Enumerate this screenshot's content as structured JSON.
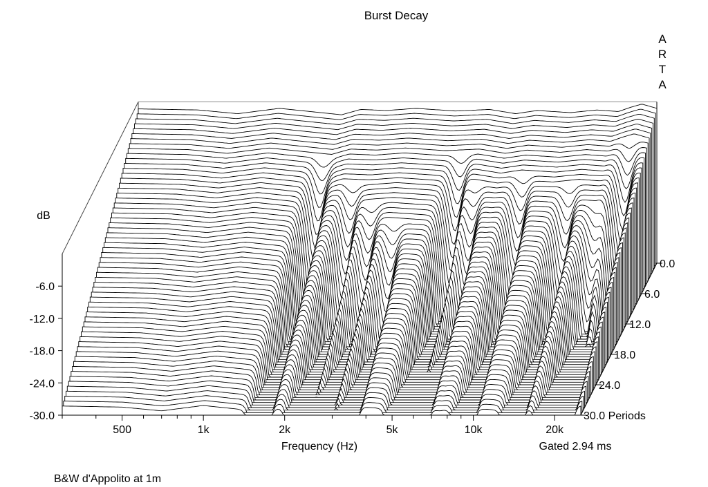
{
  "chart_data": {
    "type": "waterfall",
    "title": "Burst Decay",
    "brand": [
      "A",
      "R",
      "T",
      "A"
    ],
    "xlabel": "Frequency (Hz)",
    "x_scale": "log",
    "xlim": [
      300,
      25000
    ],
    "x_ticks": [
      {
        "value": 500,
        "label": "500"
      },
      {
        "value": 1000,
        "label": "1k"
      },
      {
        "value": 2000,
        "label": "2k"
      },
      {
        "value": 5000,
        "label": "5k"
      },
      {
        "value": 10000,
        "label": "10k"
      },
      {
        "value": 20000,
        "label": "20k"
      }
    ],
    "ylabel": "dB",
    "ylim": [
      -30,
      0
    ],
    "y_ticks": [
      "-6.0",
      "-12.0",
      "-18.0",
      "-24.0",
      "-30.0"
    ],
    "zlabel": "Periods",
    "zlim": [
      0,
      30
    ],
    "z_ticks": [
      "0.0",
      "6.0",
      "12.0",
      "18.0",
      "24.0",
      "30.0 Periods"
    ],
    "subtitle_right": "Gated 2.94 ms",
    "footnote": "B&W d'Appolito at 1m",
    "response_0_periods_db": [
      {
        "f": 300,
        "db": -1.3
      },
      {
        "f": 500,
        "db": -1.5
      },
      {
        "f": 700,
        "db": -2.2
      },
      {
        "f": 1000,
        "db": -1.2
      },
      {
        "f": 1300,
        "db": -1.8
      },
      {
        "f": 1700,
        "db": -2.4
      },
      {
        "f": 2000,
        "db": -1.4
      },
      {
        "f": 2500,
        "db": -1.6
      },
      {
        "f": 3200,
        "db": -1.2
      },
      {
        "f": 4500,
        "db": -1.7
      },
      {
        "f": 6000,
        "db": -1.4
      },
      {
        "f": 7500,
        "db": -2.2
      },
      {
        "f": 9000,
        "db": -1.6
      },
      {
        "f": 12000,
        "db": -2.0
      },
      {
        "f": 15000,
        "db": -1.5
      },
      {
        "f": 18000,
        "db": -1.8
      },
      {
        "f": 20000,
        "db": -1.0
      },
      {
        "f": 22000,
        "db": -0.4
      },
      {
        "f": 25000,
        "db": -1.2
      }
    ],
    "decay_dips": [
      {
        "f": 1600,
        "start_period": 4,
        "depth_db": 28
      },
      {
        "f": 2200,
        "start_period": 7,
        "depth_db": 28
      },
      {
        "f": 2700,
        "start_period": 9,
        "depth_db": 28
      },
      {
        "f": 3400,
        "start_period": 11,
        "depth_db": 28
      },
      {
        "f": 5200,
        "start_period": 4,
        "depth_db": 28
      },
      {
        "f": 6200,
        "start_period": 7,
        "depth_db": 28
      },
      {
        "f": 9200,
        "start_period": 6,
        "depth_db": 28
      },
      {
        "f": 14000,
        "start_period": 7,
        "depth_db": 28
      },
      {
        "f": 18500,
        "start_period": 9,
        "depth_db": 28
      },
      {
        "f": 21500,
        "start_period": 3,
        "depth_db": 28
      }
    ],
    "decay_slope_db_per_period": 0.9,
    "noise_floor_db": -30
  }
}
